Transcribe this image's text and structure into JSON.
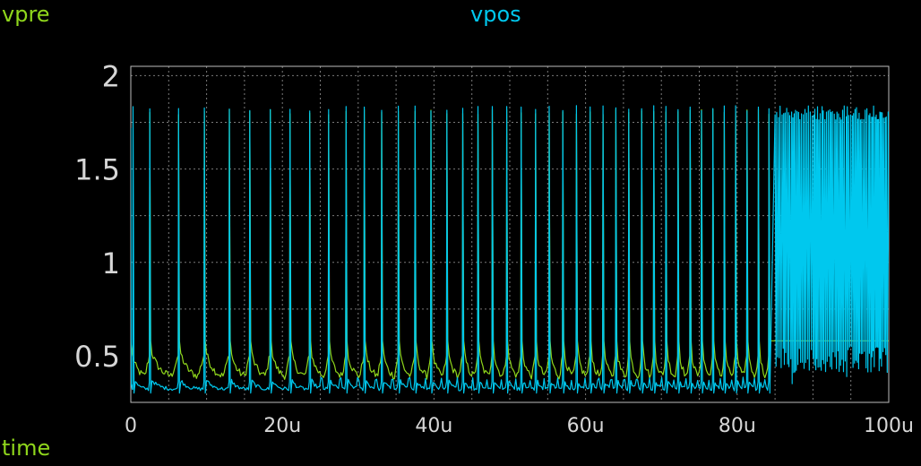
{
  "chart_data": {
    "type": "line",
    "xlabel": "time",
    "ylabel": "",
    "xlim": [
      0,
      100
    ],
    "ylim": [
      0.25,
      2.05
    ],
    "x_unit": "u",
    "xticks": [
      0,
      20,
      40,
      60,
      80,
      100
    ],
    "xtick_labels": [
      "0",
      "20u",
      "40u",
      "60u",
      "80u",
      "100u"
    ],
    "yticks": [
      0.5,
      1,
      1.5,
      2
    ],
    "ytick_labels": [
      "0.5",
      "1",
      "1.5",
      "2"
    ],
    "grid": true,
    "legend_position": "top",
    "series": [
      {
        "name": "vpre",
        "color": "#8fd61c",
        "baseline_min": 0.3,
        "spike_peak": 1.82,
        "spike_times": [
          2.5,
          6.3,
          9.7,
          13.0,
          15.7,
          18.4,
          21.0,
          23.6,
          26.1,
          28.4,
          30.8,
          33.1,
          35.3,
          37.5,
          39.6,
          41.7,
          43.8,
          45.8,
          47.7,
          49.6,
          51.5,
          53.4,
          55.2,
          57.0,
          58.8,
          60.6,
          62.3,
          64.0,
          65.7,
          67.4,
          69.0,
          70.6,
          72.2,
          73.8,
          75.3,
          76.8,
          78.3,
          79.8,
          81.3,
          82.8,
          84.2
        ]
      },
      {
        "name": "vpos",
        "color": "#00c8ee",
        "baseline_min": 0.28,
        "spike_peak": 1.84,
        "spike_times": [
          0.3,
          2.5,
          6.3,
          9.7,
          13.0,
          15.7,
          18.4,
          21.0,
          23.6,
          26.1,
          28.4,
          30.8,
          33.1,
          35.3,
          37.5,
          39.6,
          41.7,
          43.8,
          45.8,
          47.7,
          49.6,
          51.5,
          53.4,
          55.2,
          57.0,
          58.8,
          60.6,
          62.3,
          64.0,
          65.7,
          67.4,
          69.0,
          70.6,
          72.2,
          73.8,
          75.3,
          76.8,
          78.3,
          79.8,
          81.3,
          82.8,
          84.2
        ],
        "dense_oscillation_range": [
          85.0,
          100.0
        ],
        "dense_oscillation_band": [
          0.55,
          1.84
        ]
      }
    ]
  },
  "colors": {
    "background": "#000000",
    "axis": "#bdbdbd",
    "grid": "#7a7a7a",
    "tick_label": "#d6d6d6"
  }
}
